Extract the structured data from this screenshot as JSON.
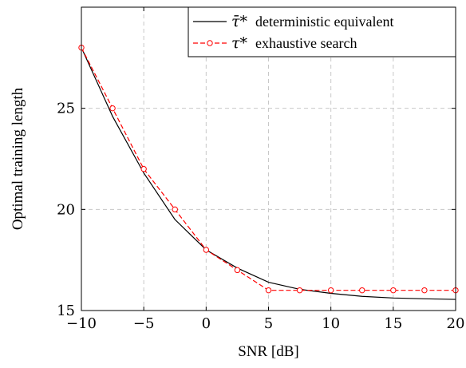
{
  "chart_data": {
    "type": "line",
    "title": "",
    "xlabel": "SNR [dB]",
    "ylabel": "Optimal training length",
    "xlim": [
      -10,
      20
    ],
    "ylim": [
      15,
      30
    ],
    "xticks": [
      -10,
      -5,
      0,
      5,
      10,
      15,
      20
    ],
    "yticks": [
      15,
      20,
      25
    ],
    "xtick_labels": [
      "−10",
      "−5",
      "0",
      "5",
      "10",
      "15",
      "20"
    ],
    "ytick_labels": [
      "15",
      "20",
      "25"
    ],
    "grid": true,
    "legend_position": "top-right",
    "series": [
      {
        "name": "deterministic equivalent",
        "symbol": "τ̄*",
        "color": "#000000",
        "style": "solid",
        "marker": "none",
        "x": [
          -10,
          -7.5,
          -5,
          -2.5,
          0,
          2.5,
          5,
          7.5,
          10,
          12.5,
          15,
          17.5,
          20
        ],
        "y": [
          28,
          24.6,
          21.8,
          19.5,
          18,
          17.1,
          16.4,
          16.05,
          15.85,
          15.7,
          15.62,
          15.58,
          15.55
        ]
      },
      {
        "name": "exhaustive search",
        "symbol": "τ*",
        "color": "#ff0000",
        "style": "dashed",
        "marker": "circle",
        "x": [
          -10,
          -7.5,
          -5,
          -2.5,
          0,
          2.5,
          5,
          7.5,
          10,
          12.5,
          15,
          17.5,
          20
        ],
        "y": [
          28,
          25,
          22,
          20,
          18,
          17,
          16,
          16,
          16,
          16,
          16,
          16,
          16
        ]
      }
    ]
  }
}
